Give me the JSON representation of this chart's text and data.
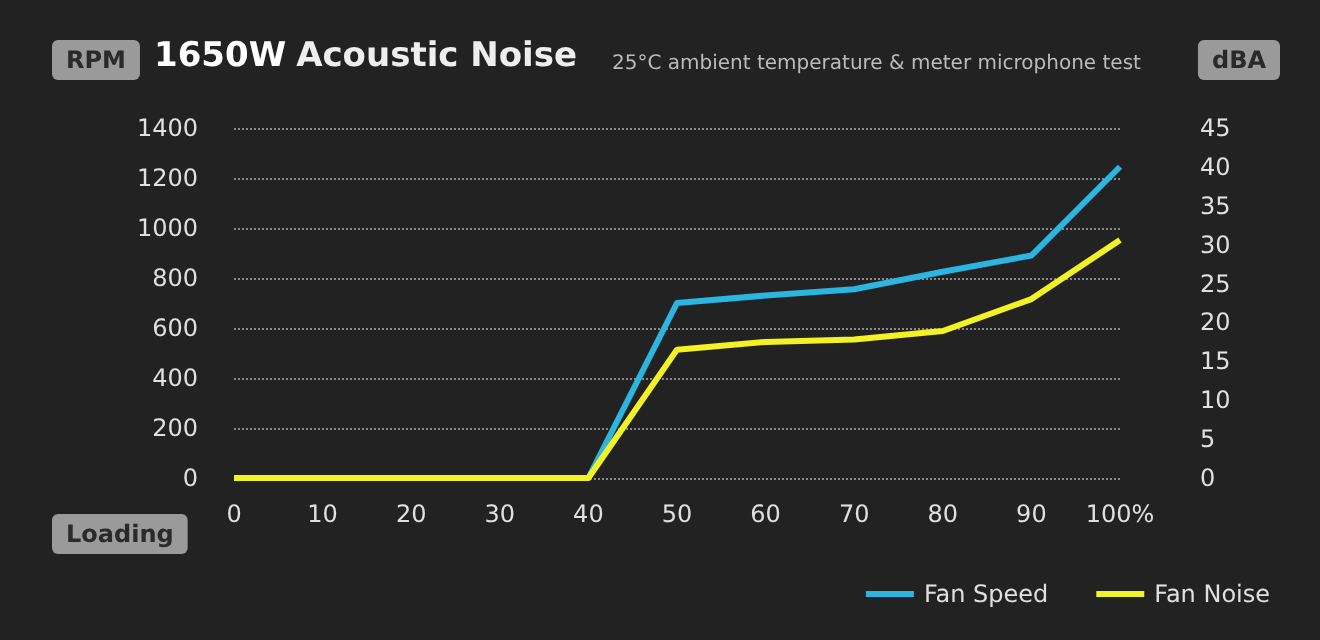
{
  "chart_data": {
    "type": "line",
    "title": "1650W Acoustic Noise",
    "subtitle": "25°C ambient temperature & meter microphone test",
    "ylabel": "RPM",
    "y2label": "dBA",
    "xlabel": "Loading",
    "x": [
      0,
      10,
      20,
      30,
      40,
      50,
      60,
      70,
      80,
      90,
      100
    ],
    "series": [
      {
        "name": "Fan Speed",
        "color": "#2bb5e0",
        "values": [
          null,
          null,
          null,
          null,
          0,
          700,
          730,
          755,
          825,
          890,
          1245
        ]
      },
      {
        "name": "Fan Noise",
        "color": "#f2f224",
        "axis": "y2",
        "values": [
          0,
          0,
          0,
          0,
          0,
          16.5,
          17.5,
          17.8,
          18.9,
          23,
          30.6
        ]
      }
    ],
    "xlim": [
      0,
      100
    ],
    "xticks": [
      0,
      10,
      20,
      30,
      40,
      50,
      60,
      70,
      80,
      90,
      {
        "value": 100,
        "label": "100%"
      }
    ],
    "ylim": [
      0,
      1400
    ],
    "yticks": [
      0,
      200,
      400,
      600,
      800,
      1000,
      1200,
      1400
    ],
    "y2lim": [
      0,
      45
    ],
    "y2ticks": [
      0,
      5,
      10,
      15,
      20,
      25,
      30,
      35,
      40,
      45
    ],
    "grid": "y",
    "legend": "bottom right",
    "line_style": "solid",
    "marker": "none"
  }
}
